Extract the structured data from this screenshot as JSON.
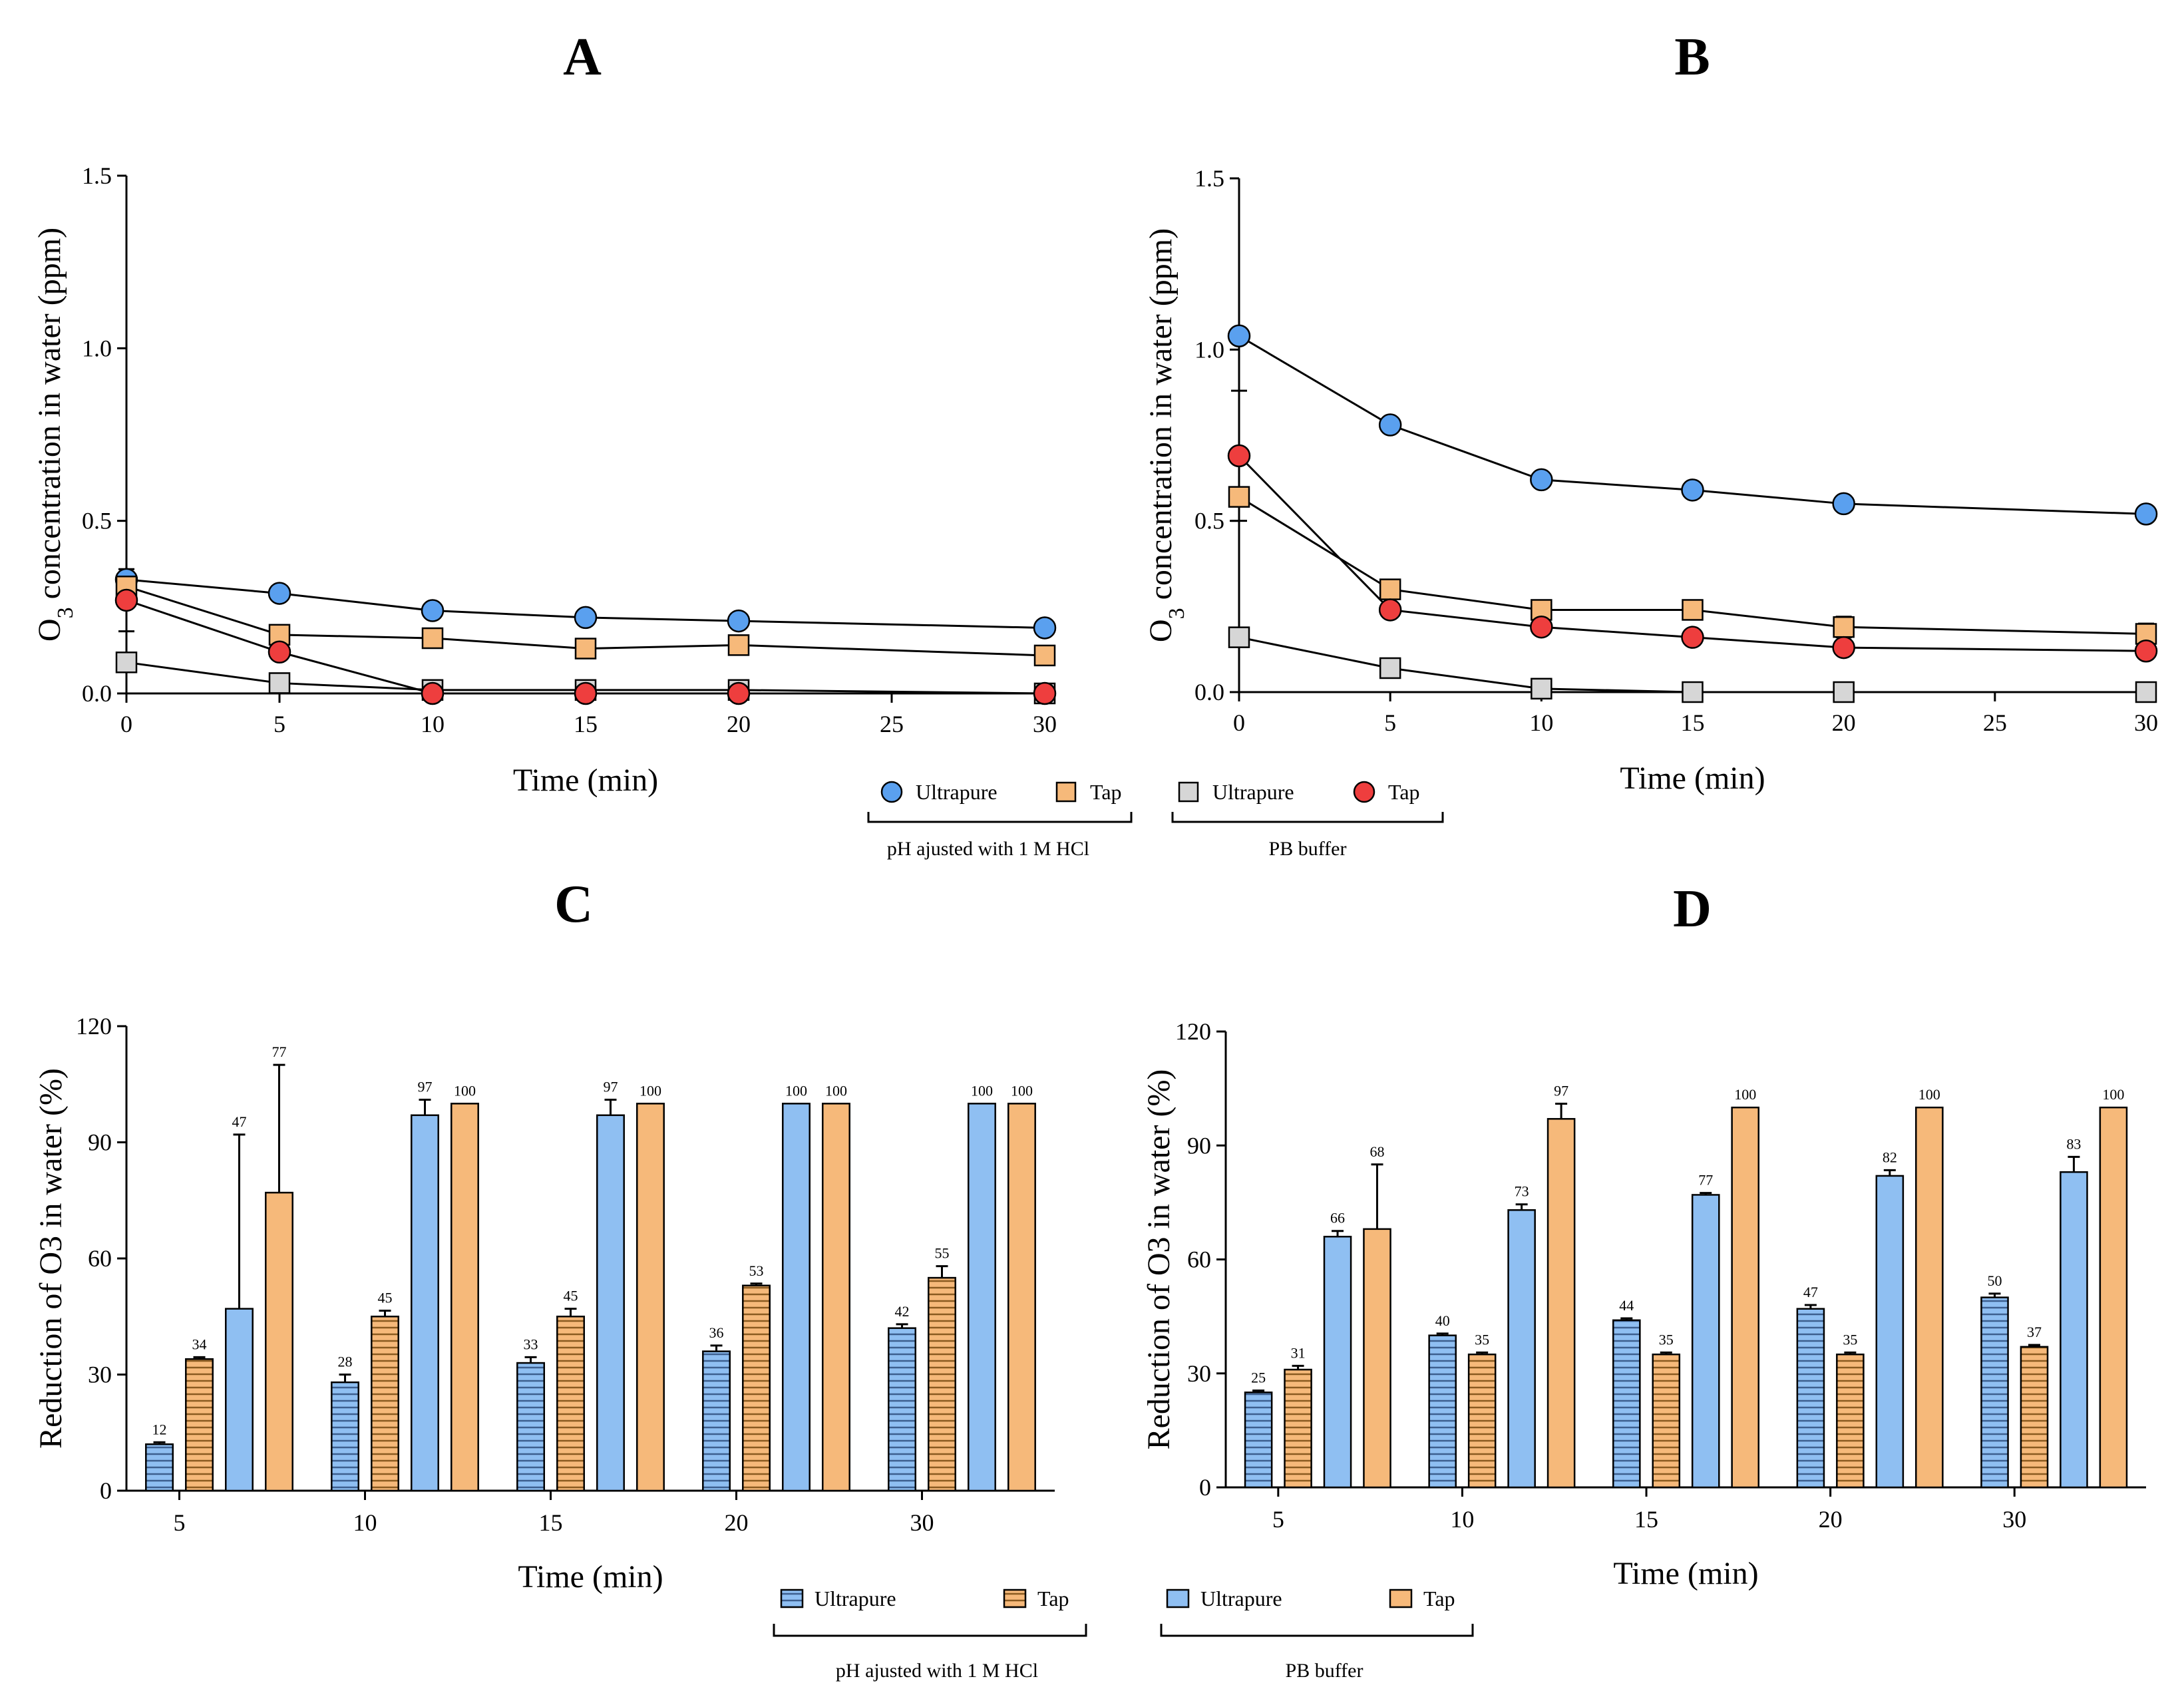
{
  "colors": {
    "blue": "#5aa0ef",
    "blue_bar": "#8fbff2",
    "orange": "#f6b97a",
    "gray": "#d6d6d6",
    "red": "#ee3e3e",
    "stripe": "#3d5f8f",
    "stripe_orange": "#8a5a20"
  },
  "legends": {
    "top": {
      "items": [
        {
          "label": "Ultrapure",
          "marker": "circle",
          "fill": "#5aa0ef"
        },
        {
          "label": "Tap",
          "marker": "square",
          "fill": "#f6b97a"
        },
        {
          "label": "Ultrapure",
          "marker": "square",
          "fill": "#d6d6d6"
        },
        {
          "label": "Tap",
          "marker": "circle",
          "fill": "#ee3e3e"
        }
      ],
      "groups": [
        "pH ajusted with 1 M HCl",
        "PB buffer"
      ]
    },
    "bottom": {
      "items": [
        {
          "label": "Ultrapure",
          "pattern": "stripe-blue"
        },
        {
          "label": "Tap",
          "pattern": "stripe-orange"
        },
        {
          "label": "Ultrapure",
          "pattern": "solid-blue"
        },
        {
          "label": "Tap",
          "pattern": "solid-orange"
        }
      ],
      "groups": [
        "pH ajusted with 1 M HCl",
        "PB buffer"
      ]
    }
  },
  "chart_data": [
    {
      "panel": "A",
      "type": "line",
      "title": "A",
      "xlabel": "Time (min)",
      "ylabel_main": "O",
      "ylabel_sub": "3",
      "ylabel_rest": " concentration in water (ppm)",
      "xlim": [
        0,
        30
      ],
      "ylim": [
        0,
        1.5
      ],
      "xticks": [
        0,
        5,
        10,
        15,
        20,
        25,
        30
      ],
      "yticks": [
        0.0,
        0.5,
        1.0,
        1.5
      ],
      "ytick_labels": [
        "0.0",
        "0.5",
        "1.0",
        "1.5"
      ],
      "x": [
        0,
        5,
        10,
        15,
        20,
        30
      ],
      "series": [
        {
          "name": "Ultrapure (pH ajusted with 1 M HCl)",
          "marker": "circle",
          "color": "#5aa0ef",
          "values": [
            0.33,
            0.29,
            0.24,
            0.22,
            0.21,
            0.19
          ],
          "errors": [
            0,
            0,
            0,
            0,
            0,
            0
          ]
        },
        {
          "name": "Tap (pH ajusted with 1 M HCl)",
          "marker": "square",
          "color": "#f6b97a",
          "values": [
            0.31,
            0.17,
            0.16,
            0.13,
            0.14,
            0.11
          ],
          "errors": [
            0,
            0,
            0,
            0,
            0,
            0
          ]
        },
        {
          "name": "Ultrapure (PB buffer)",
          "marker": "square",
          "color": "#d6d6d6",
          "values": [
            0.09,
            0.03,
            0.01,
            0.01,
            0.01,
            0.0
          ],
          "errors": [
            0,
            0,
            0,
            0,
            0,
            0
          ]
        },
        {
          "name": "Tap (PB buffer)",
          "marker": "circle",
          "color": "#ee3e3e",
          "values": [
            0.27,
            0.12,
            0.0,
            0.0,
            0.0,
            0.0
          ],
          "errors": [
            0.09,
            0,
            0,
            0,
            0,
            0
          ]
        }
      ]
    },
    {
      "panel": "B",
      "type": "line",
      "title": "B",
      "xlabel": "Time (min)",
      "ylabel_main": "O",
      "ylabel_sub": "3",
      "ylabel_rest": " concentration in water (ppm)",
      "xlim": [
        0,
        30
      ],
      "ylim": [
        0,
        1.5
      ],
      "xticks": [
        0,
        5,
        10,
        15,
        20,
        25,
        30
      ],
      "yticks": [
        0.0,
        0.5,
        1.0,
        1.5
      ],
      "ytick_labels": [
        "0.0",
        "0.5",
        "1.0",
        "1.5"
      ],
      "x": [
        0,
        5,
        10,
        15,
        20,
        30
      ],
      "series": [
        {
          "name": "Ultrapure (pH ajusted with 1 M HCl)",
          "marker": "circle",
          "color": "#5aa0ef",
          "values": [
            1.04,
            0.78,
            0.62,
            0.59,
            0.55,
            0.52
          ],
          "errors": [
            0,
            0,
            0,
            0,
            0,
            0
          ]
        },
        {
          "name": "Tap (pH ajusted with 1 M HCl)",
          "marker": "square",
          "color": "#f6b97a",
          "values": [
            0.57,
            0.3,
            0.24,
            0.24,
            0.19,
            0.17
          ],
          "errors": [
            0,
            0,
            0,
            0,
            0.03,
            0.03
          ]
        },
        {
          "name": "Ultrapure (PB buffer)",
          "marker": "square",
          "color": "#d6d6d6",
          "values": [
            0.16,
            0.07,
            0.01,
            0.0,
            0.0,
            0.0
          ],
          "errors": [
            0,
            0,
            0,
            0,
            0,
            0
          ]
        },
        {
          "name": "Tap (PB buffer)",
          "marker": "circle",
          "color": "#ee3e3e",
          "values": [
            0.69,
            0.24,
            0.19,
            0.16,
            0.13,
            0.12
          ],
          "errors": [
            0.19,
            0,
            0,
            0,
            0,
            0
          ]
        }
      ]
    },
    {
      "panel": "C",
      "type": "bar",
      "title": "C",
      "xlabel": "Time (min)",
      "ylabel": "Reduction of O3 in water (%)",
      "ylim": [
        0,
        120
      ],
      "yticks": [
        0,
        30,
        60,
        90,
        120
      ],
      "categories": [
        "5",
        "10",
        "15",
        "20",
        "30"
      ],
      "series": [
        {
          "name": "Ultrapure (pH ajusted with 1 M HCl)",
          "pattern": "stripe-blue",
          "values": [
            12,
            28,
            33,
            36,
            42
          ],
          "errors": [
            0.5,
            2,
            1.5,
            1.5,
            1
          ],
          "labels": [
            "12",
            "28",
            "33",
            "36",
            "42"
          ]
        },
        {
          "name": "Tap (pH ajusted with 1 M HCl)",
          "pattern": "stripe-orange",
          "values": [
            34,
            45,
            45,
            53,
            55
          ],
          "errors": [
            0.5,
            1.5,
            2,
            0.5,
            3
          ],
          "labels": [
            "34",
            "45",
            "45",
            "53",
            "55"
          ]
        },
        {
          "name": "Ultrapure (PB buffer)",
          "pattern": "solid-blue",
          "values": [
            47,
            97,
            97,
            100,
            100
          ],
          "errors": [
            45,
            4,
            4,
            0,
            0
          ],
          "labels": [
            "47",
            "97",
            "97",
            "100",
            "100"
          ]
        },
        {
          "name": "Tap (PB buffer)",
          "pattern": "solid-orange",
          "values": [
            77,
            100,
            100,
            100,
            100
          ],
          "errors": [
            33,
            0,
            0,
            0,
            0
          ],
          "labels": [
            "77",
            "100",
            "100",
            "100",
            "100"
          ]
        }
      ]
    },
    {
      "panel": "D",
      "type": "bar",
      "title": "D",
      "xlabel": "Time (min)",
      "ylabel": "Reduction of O3 in water (%)",
      "ylim": [
        0,
        120
      ],
      "yticks": [
        0,
        30,
        60,
        90,
        120
      ],
      "categories": [
        "5",
        "10",
        "15",
        "20",
        "30"
      ],
      "series": [
        {
          "name": "Ultrapure (pH ajusted with 1 M HCl)",
          "pattern": "stripe-blue",
          "values": [
            25,
            40,
            44,
            47,
            50
          ],
          "errors": [
            0.5,
            0.5,
            0.5,
            1,
            1
          ],
          "labels": [
            "25",
            "40",
            "44",
            "47",
            "50"
          ]
        },
        {
          "name": "Tap (pH ajusted with 1 M HCl)",
          "pattern": "stripe-orange",
          "values": [
            31,
            35,
            35,
            35,
            37
          ],
          "errors": [
            1,
            0.5,
            0.5,
            0.5,
            0.5
          ],
          "labels": [
            "31",
            "35",
            "35",
            "35",
            "37"
          ]
        },
        {
          "name": "Ultrapure (PB buffer)",
          "pattern": "solid-blue",
          "values": [
            66,
            73,
            77,
            82,
            83
          ],
          "errors": [
            1.5,
            1.5,
            0.5,
            1.5,
            4
          ],
          "labels": [
            "66",
            "73",
            "77",
            "82",
            "83"
          ]
        },
        {
          "name": "Tap (PB buffer)",
          "pattern": "solid-orange",
          "values": [
            68,
            97,
            100,
            100,
            100
          ],
          "errors": [
            17,
            4,
            0,
            0,
            0
          ],
          "labels": [
            "68",
            "97",
            "100",
            "100",
            "100"
          ]
        }
      ]
    }
  ]
}
